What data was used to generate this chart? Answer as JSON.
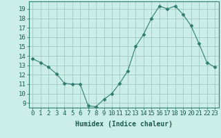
{
  "x": [
    0,
    1,
    2,
    3,
    4,
    5,
    6,
    7,
    8,
    9,
    10,
    11,
    12,
    13,
    14,
    15,
    16,
    17,
    18,
    19,
    20,
    21,
    22,
    23
  ],
  "y": [
    13.7,
    13.3,
    12.8,
    12.1,
    11.1,
    11.0,
    11.0,
    8.7,
    8.6,
    9.4,
    10.0,
    11.1,
    12.4,
    15.0,
    16.3,
    18.0,
    19.3,
    19.0,
    19.3,
    18.4,
    17.2,
    15.3,
    13.3,
    12.8
  ],
  "line_color": "#2e7d6e",
  "marker": "D",
  "marker_size": 2.5,
  "bg_color": "#cceee8",
  "grid_color": "#a0c8c0",
  "xlabel": "Humidex (Indice chaleur)",
  "xlim": [
    -0.5,
    23.5
  ],
  "ylim": [
    8.5,
    19.8
  ],
  "yticks": [
    9,
    10,
    11,
    12,
    13,
    14,
    15,
    16,
    17,
    18,
    19
  ],
  "xticks": [
    0,
    1,
    2,
    3,
    4,
    5,
    6,
    7,
    8,
    9,
    10,
    11,
    12,
    13,
    14,
    15,
    16,
    17,
    18,
    19,
    20,
    21,
    22,
    23
  ],
  "xtick_labels": [
    "0",
    "1",
    "2",
    "3",
    "4",
    "5",
    "6",
    "7",
    "8",
    "9",
    "10",
    "11",
    "12",
    "13",
    "14",
    "15",
    "16",
    "17",
    "18",
    "19",
    "20",
    "21",
    "22",
    "23"
  ],
  "xlabel_fontsize": 7,
  "tick_fontsize": 6.5
}
